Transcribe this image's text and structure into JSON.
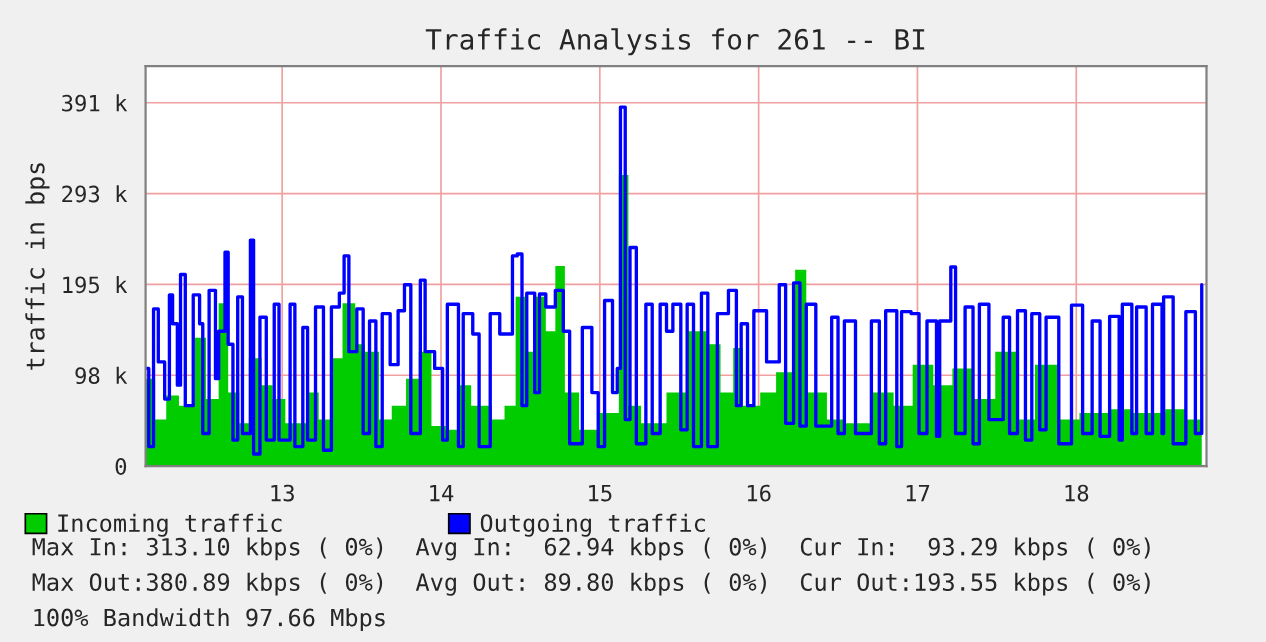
{
  "chart_data": {
    "type": "area",
    "title": "Traffic Analysis for 261 -- BI",
    "ylabel": "traffic in bps",
    "xlim": [
      12.14,
      18.82
    ],
    "xticks": [
      13,
      14,
      15,
      16,
      17,
      18
    ],
    "ylim": [
      0,
      430
    ],
    "yticks": [
      {
        "value": 0,
        "label": "0"
      },
      {
        "value": 97.66,
        "label": "98 k"
      },
      {
        "value": 195.31,
        "label": "195 k"
      },
      {
        "value": 292.97,
        "label": "293 k"
      },
      {
        "value": 390.63,
        "label": "391 k"
      }
    ],
    "grid": true,
    "legend": "bottom",
    "series": [
      {
        "name": "Incoming traffic",
        "color": "#00cc00",
        "x": [
          12.14,
          12.2,
          12.27,
          12.35,
          12.45,
          12.52,
          12.6,
          12.66,
          12.73,
          12.79,
          12.87,
          12.94,
          13.02,
          13.15,
          13.23,
          13.31,
          13.38,
          13.46,
          13.52,
          13.61,
          13.69,
          13.78,
          13.86,
          13.94,
          14.03,
          14.11,
          14.19,
          14.32,
          14.4,
          14.47,
          14.53,
          14.59,
          14.66,
          14.72,
          14.78,
          14.87,
          14.99,
          15.12,
          15.18,
          15.26,
          15.42,
          15.55,
          15.67,
          15.76,
          15.84,
          15.9,
          16.01,
          16.11,
          16.22,
          16.23,
          16.3,
          16.43,
          16.55,
          16.72,
          16.85,
          16.97,
          17.1,
          17.22,
          17.35,
          17.49,
          17.64,
          17.74,
          17.89,
          18.02,
          18.21,
          18.35,
          18.56,
          18.69,
          18.79
        ],
        "values": [
          94,
          50,
          76,
          65,
          138,
          72,
          175,
          79,
          46,
          116,
          87,
          72,
          46,
          79,
          50,
          116,
          175,
          131,
          123,
          50,
          65,
          94,
          123,
          43,
          39,
          87,
          65,
          50,
          65,
          182,
          123,
          182,
          145,
          215,
          79,
          39,
          57,
          313,
          65,
          46,
          79,
          145,
          131,
          79,
          127,
          65,
          79,
          101,
          189,
          211,
          79,
          50,
          46,
          79,
          65,
          109,
          87,
          105,
          72,
          123,
          50,
          109,
          50,
          57,
          61,
          57,
          61,
          50,
          28
        ]
      },
      {
        "name": "Outgoing traffic",
        "type": "step",
        "color": "#0000ff",
        "x": [
          12.14,
          12.16,
          12.19,
          12.22,
          12.26,
          12.29,
          12.31,
          12.34,
          12.36,
          12.39,
          12.44,
          12.48,
          12.5,
          12.54,
          12.58,
          12.6,
          12.64,
          12.66,
          12.69,
          12.72,
          12.75,
          12.8,
          12.82,
          12.86,
          12.9,
          12.95,
          12.98,
          13.05,
          13.08,
          13.13,
          13.16,
          13.21,
          13.26,
          13.31,
          13.36,
          13.39,
          13.42,
          13.47,
          13.51,
          13.55,
          13.59,
          13.63,
          13.68,
          13.73,
          13.77,
          13.81,
          13.87,
          13.9,
          13.96,
          14.01,
          14.04,
          14.11,
          14.14,
          14.2,
          14.24,
          14.31,
          14.37,
          14.45,
          14.48,
          14.51,
          14.54,
          14.59,
          14.62,
          14.66,
          14.72,
          14.77,
          14.81,
          14.89,
          14.95,
          14.99,
          15.03,
          15.08,
          15.11,
          15.13,
          15.16,
          15.19,
          15.23,
          15.29,
          15.33,
          15.38,
          15.42,
          15.46,
          15.51,
          15.55,
          15.59,
          15.64,
          15.68,
          15.74,
          15.81,
          15.86,
          15.89,
          15.93,
          15.97,
          16.05,
          16.13,
          16.17,
          16.22,
          16.26,
          16.3,
          16.36,
          16.46,
          16.5,
          16.54,
          16.61,
          16.71,
          16.76,
          16.8,
          16.87,
          16.9,
          16.96,
          17.01,
          17.06,
          17.12,
          17.14,
          17.21,
          17.24,
          17.3,
          17.35,
          17.39,
          17.45,
          17.54,
          17.58,
          17.63,
          17.68,
          17.72,
          17.77,
          17.81,
          17.89,
          17.97,
          18.04,
          18.1,
          18.15,
          18.21,
          18.27,
          18.29,
          18.35,
          18.38,
          18.44,
          18.48,
          18.54,
          18.55,
          18.61,
          18.69,
          18.75,
          18.79
        ],
        "values": [
          105,
          21,
          169,
          112,
          72,
          184,
          153,
          87,
          206,
          65,
          184,
          153,
          35,
          189,
          94,
          145,
          230,
          131,
          28,
          182,
          35,
          243,
          13,
          160,
          28,
          174,
          28,
          174,
          21,
          149,
          28,
          171,
          17,
          171,
          186,
          226,
          123,
          169,
          35,
          156,
          21,
          164,
          109,
          167,
          195,
          35,
          200,
          123,
          105,
          28,
          174,
          21,
          164,
          142,
          21,
          164,
          142,
          226,
          228,
          65,
          186,
          79,
          185,
          171,
          189,
          145,
          24,
          149,
          79,
          21,
          178,
          79,
          105,
          386,
          50,
          235,
          24,
          174,
          35,
          174,
          145,
          174,
          39,
          174,
          21,
          186,
          21,
          164,
          189,
          65,
          153,
          65,
          167,
          112,
          195,
          46,
          197,
          43,
          174,
          43,
          160,
          35,
          156,
          35,
          156,
          24,
          167,
          21,
          166,
          164,
          35,
          156,
          32,
          156,
          214,
          35,
          171,
          24,
          174,
          50,
          160,
          35,
          167,
          28,
          164,
          39,
          160,
          24,
          173,
          35,
          156,
          32,
          161,
          28,
          174,
          35,
          171,
          35,
          174,
          35,
          182,
          24,
          166,
          35,
          195
        ]
      }
    ],
    "annotations": [
      "Max In: 313.10 kbps ( 0%)  Avg In:  62.94 kbps ( 0%)  Cur In:  93.29 kbps ( 0%)",
      "Max Out:380.89 kbps ( 0%)  Avg Out: 89.80 kbps ( 0%)  Cur Out:193.55 kbps ( 0%)",
      "100% Bandwidth 97.66 Mbps"
    ]
  }
}
